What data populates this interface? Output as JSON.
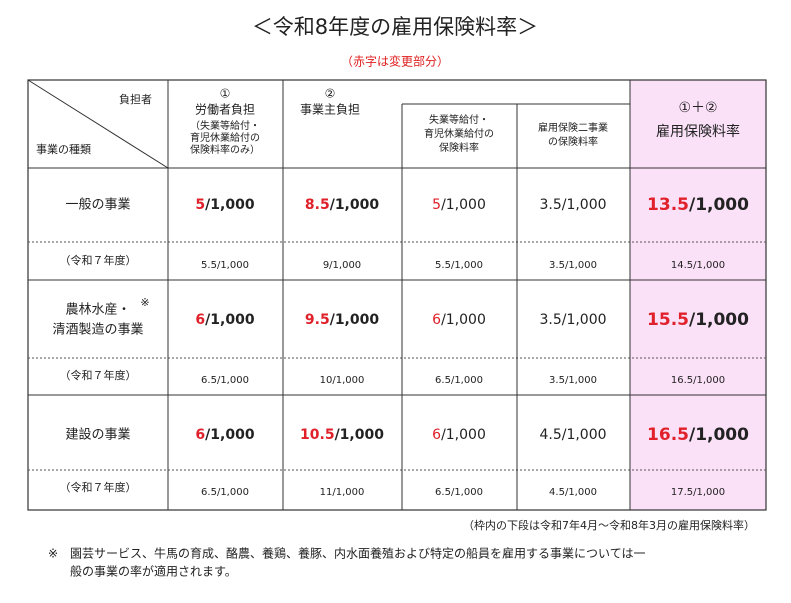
{
  "title": "＜令和8年度の雇用保険料率＞",
  "subtitle": "（赤字は変更部分）",
  "table": {
    "corner": {
      "top": "負担者",
      "bottom": "事業の種類"
    },
    "headers": [
      [
        "①",
        "労働者負担",
        "（失業等給付・",
        "育児休業給付の",
        "保険料率のみ）"
      ],
      [
        "②",
        "事業主負担"
      ],
      [
        "失業等給付・",
        "育児休業給付の",
        "保険料率"
      ],
      [
        "雇用保険二事業",
        "の保険料率"
      ],
      [
        "①＋②",
        "雇用保険料率"
      ]
    ],
    "rows": [
      {
        "label": [
          "一般の事業"
        ],
        "cells": [
          {
            "red": "5",
            "rest": "/1,000"
          },
          {
            "red": "8.5",
            "rest": "/1,000"
          },
          {
            "red": "5",
            "rest": "/1,000"
          },
          {
            "text": "3.5/1,000"
          },
          {
            "red": "13.5",
            "rest": "/1,000"
          }
        ],
        "prior_label": "（令和７年度）",
        "prior": [
          "5.5/1,000",
          "9/1,000",
          "5.5/1,000",
          "3.5/1,000",
          "14.5/1,000"
        ]
      },
      {
        "label": [
          "農林水産・",
          "清酒製造の事業"
        ],
        "mark": "※",
        "cells": [
          {
            "red": "6",
            "rest": "/1,000"
          },
          {
            "red": "9.5",
            "rest": "/1,000"
          },
          {
            "red": "6",
            "rest": "/1,000"
          },
          {
            "text": "3.5/1,000"
          },
          {
            "red": "15.5",
            "rest": "/1,000"
          }
        ],
        "prior_label": "（令和７年度）",
        "prior": [
          "6.5/1,000",
          "10/1,000",
          "6.5/1,000",
          "3.5/1,000",
          "16.5/1,000"
        ]
      },
      {
        "label": [
          "建設の事業"
        ],
        "cells": [
          {
            "red": "6",
            "rest": "/1,000"
          },
          {
            "red": "10.5",
            "rest": "/1,000"
          },
          {
            "red": "6",
            "rest": "/1,000"
          },
          {
            "text": "4.5/1,000"
          },
          {
            "red": "16.5",
            "rest": "/1,000"
          }
        ],
        "prior_label": "（令和７年度）",
        "prior": [
          "6.5/1,000",
          "11/1,000",
          "6.5/1,000",
          "4.5/1,000",
          "17.5/1,000"
        ]
      }
    ]
  },
  "footnote": "（枠内の下段は令和7年4月～令和8年3月の雇用保険料率）",
  "note": [
    "※　園芸サービス、牛馬の育成、酪農、養鶏、養豚、内水面養殖および特定の船員を雇用する事業については一",
    "般の事業の率が適用されます。"
  ]
}
